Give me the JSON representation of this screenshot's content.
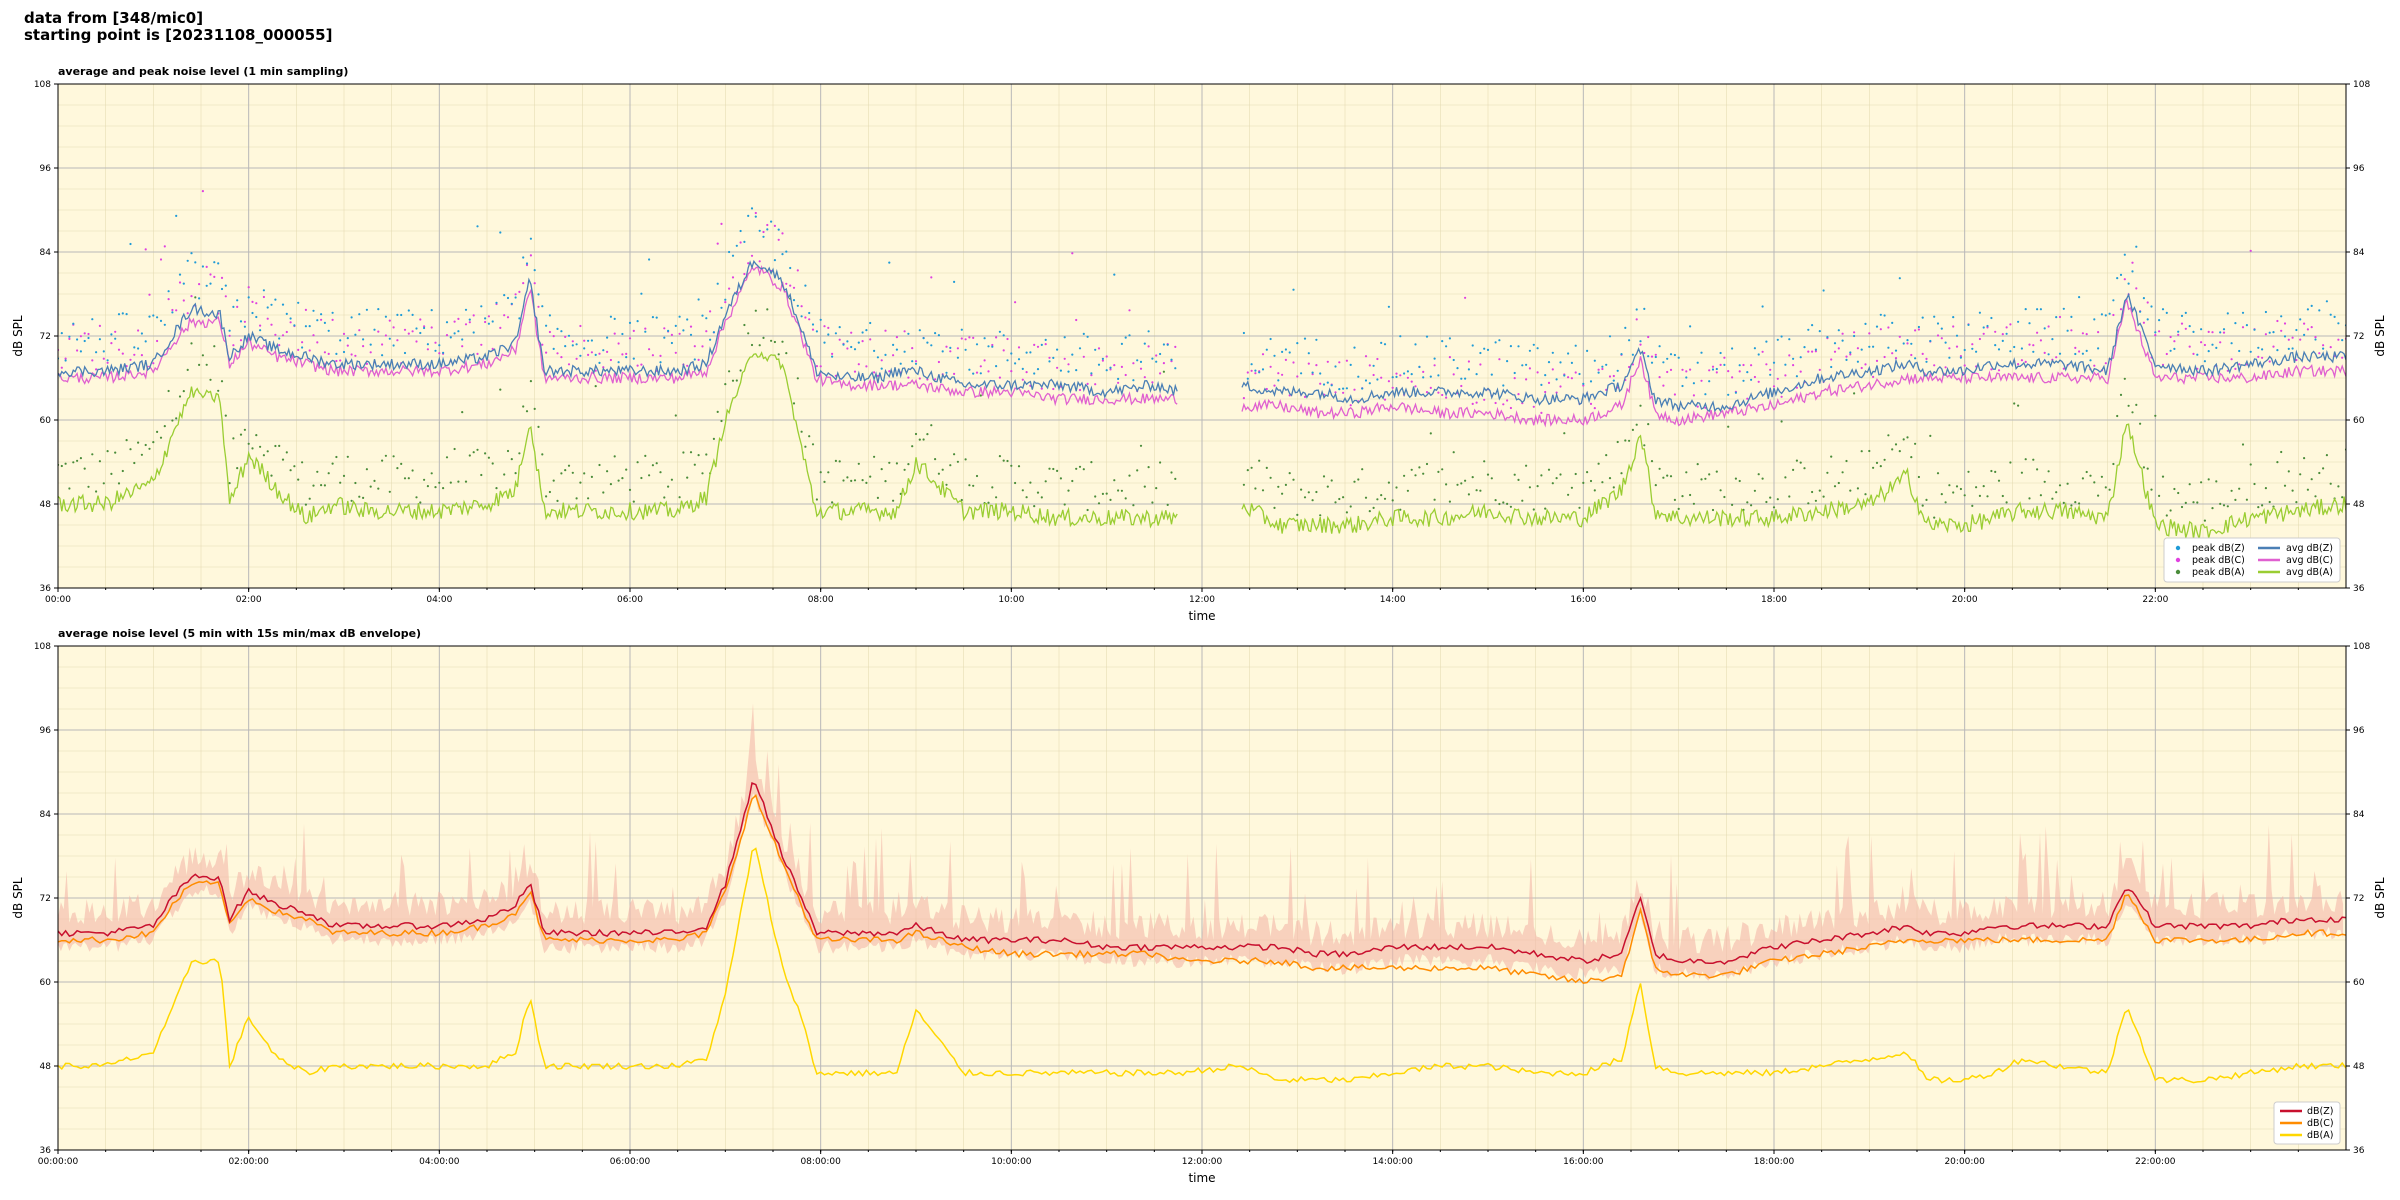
{
  "header": {
    "line1": "data from [348/mic0]",
    "line2": "starting point is [20231108_000055]"
  },
  "chart_data": [
    {
      "type": "line",
      "title": "average and peak noise level (1 min sampling)",
      "xlabel": "time",
      "ylabel": "dB SPL",
      "ylim": [
        36,
        108
      ],
      "xlim_hours": [
        0,
        24
      ],
      "yticks": [
        36,
        48,
        60,
        72,
        84,
        96,
        108
      ],
      "xticks": [
        "00:00",
        "02:00",
        "04:00",
        "06:00",
        "08:00",
        "10:00",
        "12:00",
        "14:00",
        "16:00",
        "18:00",
        "20:00",
        "22:00"
      ],
      "grid": true,
      "legend_placement": "lower-right",
      "legend_entries": [
        "peak dB(Z)",
        "peak dB(C)",
        "peak dB(A)",
        "avg dB(Z)",
        "avg dB(C)",
        "avg dB(A)"
      ],
      "colors": {
        "peak_z": "#1f9bd7",
        "peak_c": "#e040e0",
        "peak_a": "#4a8c3a",
        "avg_z": "#4a7fb5",
        "avg_c": "#e060d0",
        "avg_a": "#9acd32"
      },
      "gap_hours": [
        11.75,
        12.4
      ],
      "series": [
        {
          "name": "avg dB(Z)",
          "x": [
            0,
            0.5,
            1.0,
            1.2,
            1.4,
            1.7,
            1.8,
            2.0,
            2.3,
            2.6,
            2.9,
            3.2,
            3.5,
            4.0,
            4.5,
            4.8,
            4.95,
            5.1,
            5.5,
            6.0,
            6.5,
            6.8,
            7.0,
            7.3,
            7.6,
            7.8,
            7.95,
            8.2,
            8.6,
            8.8,
            9.0,
            9.5,
            10.0,
            10.5,
            11.0,
            11.5,
            11.75,
            12.4,
            12.8,
            13.2,
            13.6,
            14.0,
            14.5,
            15.0,
            15.5,
            16.0,
            16.4,
            16.6,
            16.75,
            17.0,
            17.5,
            18.0,
            18.5,
            19.0,
            19.4,
            19.6,
            20.0,
            20.3,
            20.6,
            21.0,
            21.5,
            21.7,
            22.0,
            22.5,
            23.0,
            23.5,
            24.0
          ],
          "y": [
            67,
            67,
            68,
            72,
            76,
            75,
            69,
            72,
            70,
            69,
            68,
            68,
            68,
            68,
            69,
            71,
            80,
            67,
            67,
            67,
            67,
            68,
            75,
            83,
            80,
            73,
            67,
            66,
            66,
            67,
            67,
            65,
            65,
            65,
            64,
            65,
            64,
            65,
            64,
            64,
            63,
            64,
            64,
            64,
            63,
            63,
            65,
            70,
            63,
            62,
            62,
            64,
            66,
            67,
            68,
            67,
            67,
            68,
            68,
            68,
            67,
            78,
            68,
            67,
            68,
            69,
            69
          ]
        },
        {
          "name": "avg dB(C)",
          "x": [
            0,
            0.5,
            1.0,
            1.2,
            1.4,
            1.7,
            1.8,
            2.0,
            2.3,
            2.6,
            2.9,
            3.2,
            3.5,
            4.0,
            4.5,
            4.8,
            4.95,
            5.1,
            5.5,
            6.0,
            6.5,
            6.8,
            7.0,
            7.3,
            7.6,
            7.8,
            7.95,
            8.2,
            8.6,
            8.8,
            9.0,
            9.5,
            10.0,
            10.5,
            11.0,
            11.5,
            11.75,
            12.4,
            12.8,
            13.2,
            13.6,
            14.0,
            14.5,
            15.0,
            15.5,
            16.0,
            16.4,
            16.6,
            16.75,
            17.0,
            17.5,
            18.0,
            18.5,
            19.0,
            19.4,
            19.6,
            20.0,
            20.3,
            20.6,
            21.0,
            21.5,
            21.7,
            22.0,
            22.5,
            23.0,
            23.5,
            24.0
          ],
          "y": [
            66,
            66,
            67,
            71,
            74,
            74,
            68,
            71,
            69,
            68,
            67,
            67,
            67,
            67,
            68,
            70,
            79,
            66,
            66,
            66,
            66,
            67,
            74,
            82,
            79,
            72,
            66,
            65,
            65,
            65,
            65,
            64,
            64,
            63,
            63,
            63,
            63,
            62,
            62,
            61,
            61,
            62,
            61,
            61,
            60,
            60,
            62,
            69,
            61,
            60,
            61,
            62,
            64,
            65,
            66,
            66,
            66,
            66,
            66,
            66,
            66,
            77,
            66,
            66,
            66,
            67,
            67
          ]
        },
        {
          "name": "avg dB(A)",
          "x": [
            0,
            0.5,
            1.0,
            1.2,
            1.4,
            1.7,
            1.8,
            2.0,
            2.3,
            2.6,
            2.9,
            3.2,
            3.5,
            4.0,
            4.5,
            4.8,
            4.95,
            5.1,
            5.5,
            6.0,
            6.5,
            6.8,
            7.0,
            7.3,
            7.6,
            7.8,
            7.95,
            8.2,
            8.6,
            8.8,
            9.0,
            9.5,
            10.0,
            10.5,
            11.0,
            11.5,
            11.75,
            12.4,
            12.8,
            13.2,
            13.6,
            14.0,
            14.5,
            15.0,
            15.5,
            16.0,
            16.4,
            16.6,
            16.75,
            17.0,
            17.5,
            18.0,
            18.5,
            19.0,
            19.4,
            19.6,
            20.0,
            20.3,
            20.6,
            21.0,
            21.5,
            21.7,
            22.0,
            22.5,
            23.0,
            23.5,
            24.0
          ],
          "y": [
            48,
            48,
            51,
            58,
            64,
            63,
            48,
            55,
            50,
            46,
            48,
            47,
            47,
            47,
            48,
            50,
            60,
            47,
            47,
            47,
            47,
            49,
            60,
            70,
            68,
            56,
            47,
            47,
            47,
            47,
            54,
            47,
            47,
            46,
            46,
            46,
            46,
            48,
            45,
            45,
            45,
            46,
            46,
            47,
            46,
            46,
            50,
            58,
            47,
            46,
            46,
            46,
            47,
            48,
            52,
            45,
            45,
            46,
            47,
            47,
            46,
            60,
            45,
            44,
            46,
            47,
            48
          ]
        }
      ]
    },
    {
      "type": "line",
      "title": "average noise level (5 min with 15s min/max dB envelope)",
      "xlabel": "time",
      "ylabel": "dB SPL",
      "ylim": [
        36,
        108
      ],
      "xlim_hours": [
        0,
        24
      ],
      "yticks": [
        36,
        48,
        60,
        72,
        84,
        96,
        108
      ],
      "xticks": [
        "00:00:00",
        "02:00:00",
        "04:00:00",
        "06:00:00",
        "08:00:00",
        "10:00:00",
        "12:00:00",
        "14:00:00",
        "16:00:00",
        "18:00:00",
        "20:00:00",
        "22:00:00"
      ],
      "grid": true,
      "legend_placement": "lower-right",
      "legend_entries": [
        "dB(Z)",
        "dB(C)",
        "dB(A)"
      ],
      "colors": {
        "z": "#c8102e",
        "c": "#ff8c00",
        "a": "#ffd700",
        "envelope": "#f4b8a8"
      },
      "series": [
        {
          "name": "dB(Z)",
          "x": [
            0,
            0.5,
            1.0,
            1.2,
            1.4,
            1.7,
            1.8,
            2.0,
            2.3,
            2.6,
            2.9,
            3.2,
            3.5,
            4.0,
            4.5,
            4.8,
            4.95,
            5.1,
            5.5,
            6.0,
            6.5,
            6.8,
            7.0,
            7.3,
            7.6,
            7.8,
            7.95,
            8.2,
            8.6,
            8.8,
            9.0,
            9.5,
            10.0,
            10.5,
            11.0,
            11.5,
            11.75,
            12.4,
            12.8,
            13.2,
            13.6,
            14.0,
            14.5,
            15.0,
            15.5,
            16.0,
            16.4,
            16.6,
            16.75,
            17.0,
            17.5,
            18.0,
            18.5,
            19.0,
            19.4,
            19.6,
            20.0,
            20.3,
            20.6,
            21.0,
            21.5,
            21.7,
            22.0,
            22.5,
            23.0,
            23.5,
            24.0
          ],
          "y": [
            67,
            67,
            68,
            72,
            75,
            75,
            69,
            73,
            71,
            70,
            68,
            68,
            68,
            68,
            69,
            71,
            74,
            67,
            67,
            67,
            67,
            68,
            74,
            89,
            78,
            72,
            67,
            67,
            67,
            67,
            68,
            66,
            66,
            66,
            65,
            65,
            65,
            65,
            65,
            64,
            64,
            65,
            65,
            65,
            64,
            63,
            64,
            72,
            64,
            63,
            63,
            65,
            66,
            67,
            68,
            67,
            67,
            68,
            68,
            68,
            68,
            74,
            68,
            68,
            68,
            69,
            69
          ]
        },
        {
          "name": "dB(C)",
          "x": [
            0,
            0.5,
            1.0,
            1.2,
            1.4,
            1.7,
            1.8,
            2.0,
            2.3,
            2.6,
            2.9,
            3.2,
            3.5,
            4.0,
            4.5,
            4.8,
            4.95,
            5.1,
            5.5,
            6.0,
            6.5,
            6.8,
            7.0,
            7.3,
            7.6,
            7.8,
            7.95,
            8.2,
            8.6,
            8.8,
            9.0,
            9.5,
            10.0,
            10.5,
            11.0,
            11.5,
            11.75,
            12.4,
            12.8,
            13.2,
            13.6,
            14.0,
            14.5,
            15.0,
            15.5,
            16.0,
            16.4,
            16.6,
            16.75,
            17.0,
            17.5,
            18.0,
            18.5,
            19.0,
            19.4,
            19.6,
            20.0,
            20.3,
            20.6,
            21.0,
            21.5,
            21.7,
            22.0,
            22.5,
            23.0,
            23.5,
            24.0
          ],
          "y": [
            66,
            66,
            67,
            71,
            74,
            74,
            68,
            72,
            70,
            69,
            67,
            67,
            67,
            67,
            68,
            70,
            73,
            66,
            66,
            66,
            66,
            67,
            73,
            87,
            77,
            71,
            66,
            66,
            66,
            66,
            67,
            65,
            64,
            64,
            64,
            64,
            63,
            63,
            63,
            62,
            62,
            62,
            62,
            62,
            61,
            60,
            61,
            70,
            62,
            61,
            61,
            63,
            64,
            65,
            66,
            66,
            66,
            66,
            66,
            66,
            66,
            73,
            66,
            66,
            66,
            67,
            67
          ]
        },
        {
          "name": "dB(A)",
          "x": [
            0,
            0.5,
            1.0,
            1.2,
            1.4,
            1.7,
            1.8,
            2.0,
            2.3,
            2.6,
            2.9,
            3.2,
            3.5,
            4.0,
            4.5,
            4.8,
            4.95,
            5.1,
            5.5,
            6.0,
            6.5,
            6.8,
            7.0,
            7.3,
            7.6,
            7.8,
            7.95,
            8.2,
            8.6,
            8.8,
            9.0,
            9.5,
            10.0,
            10.5,
            11.0,
            11.5,
            11.75,
            12.4,
            12.8,
            13.2,
            13.6,
            14.0,
            14.5,
            15.0,
            15.5,
            16.0,
            16.4,
            16.6,
            16.75,
            17.0,
            17.5,
            18.0,
            18.5,
            19.0,
            19.4,
            19.6,
            20.0,
            20.3,
            20.6,
            21.0,
            21.5,
            21.7,
            22.0,
            22.5,
            23.0,
            23.5,
            24.0
          ],
          "y": [
            48,
            48,
            50,
            56,
            63,
            63,
            48,
            55,
            49,
            47,
            48,
            48,
            48,
            48,
            48,
            50,
            58,
            48,
            48,
            48,
            48,
            49,
            58,
            80,
            62,
            55,
            47,
            47,
            47,
            47,
            56,
            47,
            47,
            47,
            47,
            47,
            47,
            48,
            46,
            46,
            46,
            47,
            48,
            48,
            47,
            47,
            49,
            60,
            48,
            47,
            47,
            47,
            48,
            49,
            50,
            46,
            46,
            47,
            49,
            48,
            47,
            57,
            46,
            46,
            47,
            48,
            48
          ]
        }
      ]
    }
  ]
}
